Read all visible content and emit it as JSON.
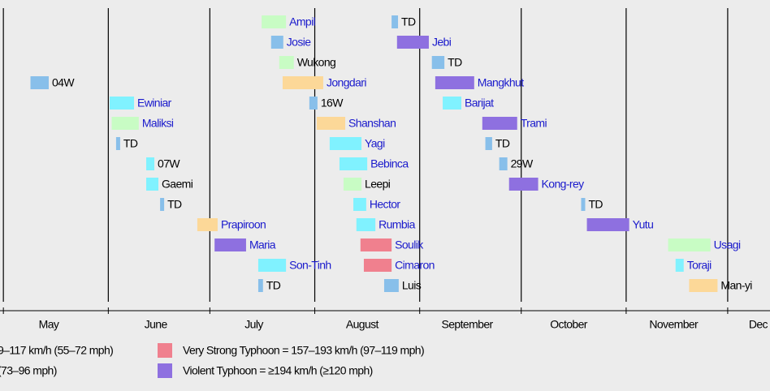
{
  "chart_data": {
    "type": "timeline",
    "xlim": [
      120,
      347.5
    ],
    "month_starts": [
      121,
      152,
      182,
      213,
      244,
      274,
      305,
      335
    ],
    "xticks": [
      {
        "value": 134.4,
        "label": "May"
      },
      {
        "value": 166,
        "label": "June"
      },
      {
        "value": 195,
        "label": "July"
      },
      {
        "value": 227,
        "label": "August"
      },
      {
        "value": 258,
        "label": "September"
      },
      {
        "value": 288,
        "label": "October"
      },
      {
        "value": 319,
        "label": "November"
      },
      {
        "value": 344,
        "label": "Dec"
      }
    ],
    "classes": [
      {
        "color": "#88bfea"
      },
      {
        "color": "#80f2ff"
      },
      {
        "color": "#c8fcc4"
      },
      {
        "color": "#fcd898"
      },
      {
        "color": "#f0808e"
      },
      {
        "color": "#8e70e0"
      }
    ],
    "series": [
      {
        "name": "04W",
        "start": 129,
        "end": 134.4,
        "class": 0,
        "label_color": "#000000"
      },
      {
        "name": "Ewiniar",
        "start": 152.4,
        "end": 159.6,
        "class": 1,
        "label_color": "#1a1acc"
      },
      {
        "name": "Maliksi",
        "start": 153,
        "end": 161,
        "class": 2,
        "label_color": "#1a1acc"
      },
      {
        "name": "TD",
        "start": 154.3,
        "end": 155.5,
        "class": 0,
        "label_color": "#000000"
      },
      {
        "name": "07W",
        "start": 163.2,
        "end": 165.6,
        "class": 1,
        "label_color": "#000000"
      },
      {
        "name": "Gaemi",
        "start": 163.2,
        "end": 166.8,
        "class": 1,
        "label_color": "#000000"
      },
      {
        "name": "TD",
        "start": 167.3,
        "end": 168.5,
        "class": 0,
        "label_color": "#000000"
      },
      {
        "name": "Prapiroon",
        "start": 178.3,
        "end": 184.3,
        "class": 3,
        "label_color": "#1a1acc"
      },
      {
        "name": "Maria",
        "start": 183.4,
        "end": 192.7,
        "class": 5,
        "label_color": "#1a1acc"
      },
      {
        "name": "Son-Tinh",
        "start": 196.3,
        "end": 204.5,
        "class": 1,
        "label_color": "#1a1acc"
      },
      {
        "name": "TD",
        "start": 196.3,
        "end": 197.7,
        "class": 0,
        "label_color": "#000000"
      },
      {
        "name": "Ampil",
        "start": 197.3,
        "end": 204.5,
        "class": 2,
        "label_color": "#1a1acc"
      },
      {
        "name": "Josie",
        "start": 200.1,
        "end": 203.7,
        "class": 0,
        "label_color": "#1a1acc"
      },
      {
        "name": "Wukong",
        "start": 202.5,
        "end": 206.8,
        "class": 2,
        "label_color": "#000000"
      },
      {
        "name": "Jongdari",
        "start": 203.5,
        "end": 215.5,
        "class": 3,
        "label_color": "#1a1acc"
      },
      {
        "name": "16W",
        "start": 211.4,
        "end": 213.8,
        "class": 0,
        "label_color": "#000000"
      },
      {
        "name": "Shanshan",
        "start": 213.6,
        "end": 222,
        "class": 3,
        "label_color": "#1a1acc"
      },
      {
        "name": "Yagi",
        "start": 217.4,
        "end": 226.8,
        "class": 1,
        "label_color": "#1a1acc"
      },
      {
        "name": "Bebinca",
        "start": 220.3,
        "end": 228.5,
        "class": 1,
        "label_color": "#1a1acc"
      },
      {
        "name": "Leepi",
        "start": 221.5,
        "end": 226.8,
        "class": 2,
        "label_color": "#000000"
      },
      {
        "name": "Hector",
        "start": 224.4,
        "end": 228.2,
        "class": 1,
        "label_color": "#1a1acc"
      },
      {
        "name": "Rumbia",
        "start": 225.3,
        "end": 230.9,
        "class": 1,
        "label_color": "#1a1acc"
      },
      {
        "name": "Soulik",
        "start": 226.5,
        "end": 235.7,
        "class": 4,
        "label_color": "#1a1acc"
      },
      {
        "name": "Cimaron",
        "start": 227.5,
        "end": 235.7,
        "class": 4,
        "label_color": "#1a1acc"
      },
      {
        "name": "Luis",
        "start": 233.5,
        "end": 237.8,
        "class": 0,
        "label_color": "#000000"
      },
      {
        "name": "TD",
        "start": 235.7,
        "end": 237.6,
        "class": 0,
        "label_color": "#000000"
      },
      {
        "name": "Jebi",
        "start": 237.3,
        "end": 246.7,
        "class": 5,
        "label_color": "#1a1acc"
      },
      {
        "name": "TD",
        "start": 247.6,
        "end": 251.3,
        "class": 0,
        "label_color": "#000000"
      },
      {
        "name": "Mangkhut",
        "start": 248.6,
        "end": 260.1,
        "class": 5,
        "label_color": "#1a1acc"
      },
      {
        "name": "Barijat",
        "start": 250.8,
        "end": 256.3,
        "class": 1,
        "label_color": "#1a1acc"
      },
      {
        "name": "Trami",
        "start": 262.5,
        "end": 272.8,
        "class": 5,
        "label_color": "#1a1acc"
      },
      {
        "name": "TD",
        "start": 263.4,
        "end": 265.4,
        "class": 0,
        "label_color": "#000000"
      },
      {
        "name": "29W",
        "start": 267.5,
        "end": 269.9,
        "class": 0,
        "label_color": "#000000"
      },
      {
        "name": "Kong-rey",
        "start": 270.4,
        "end": 279,
        "class": 5,
        "label_color": "#1a1acc"
      },
      {
        "name": "TD",
        "start": 291.7,
        "end": 292.9,
        "class": 0,
        "label_color": "#000000"
      },
      {
        "name": "Yutu",
        "start": 293.4,
        "end": 305.9,
        "class": 5,
        "label_color": "#1a1acc"
      },
      {
        "name": "Usagi",
        "start": 317.4,
        "end": 329.9,
        "class": 2,
        "label_color": "#1a1acc"
      },
      {
        "name": "Toraji",
        "start": 319.6,
        "end": 322,
        "class": 1,
        "label_color": "#1a1acc"
      },
      {
        "name": "Man-yi",
        "start": 323.6,
        "end": 332,
        "class": 3,
        "label_color": "#000000"
      }
    ],
    "legend": [
      {
        "label": "9–117 km/h (55–72 mph)"
      },
      {
        "label": "(73–96 mph)"
      },
      {
        "label": "Very Strong Typhoon = 157–193 km/h (97–119 mph)",
        "class": 4
      },
      {
        "label": "Violent Typhoon = ≥194 km/h (≥120 mph)",
        "class": 5
      }
    ]
  }
}
